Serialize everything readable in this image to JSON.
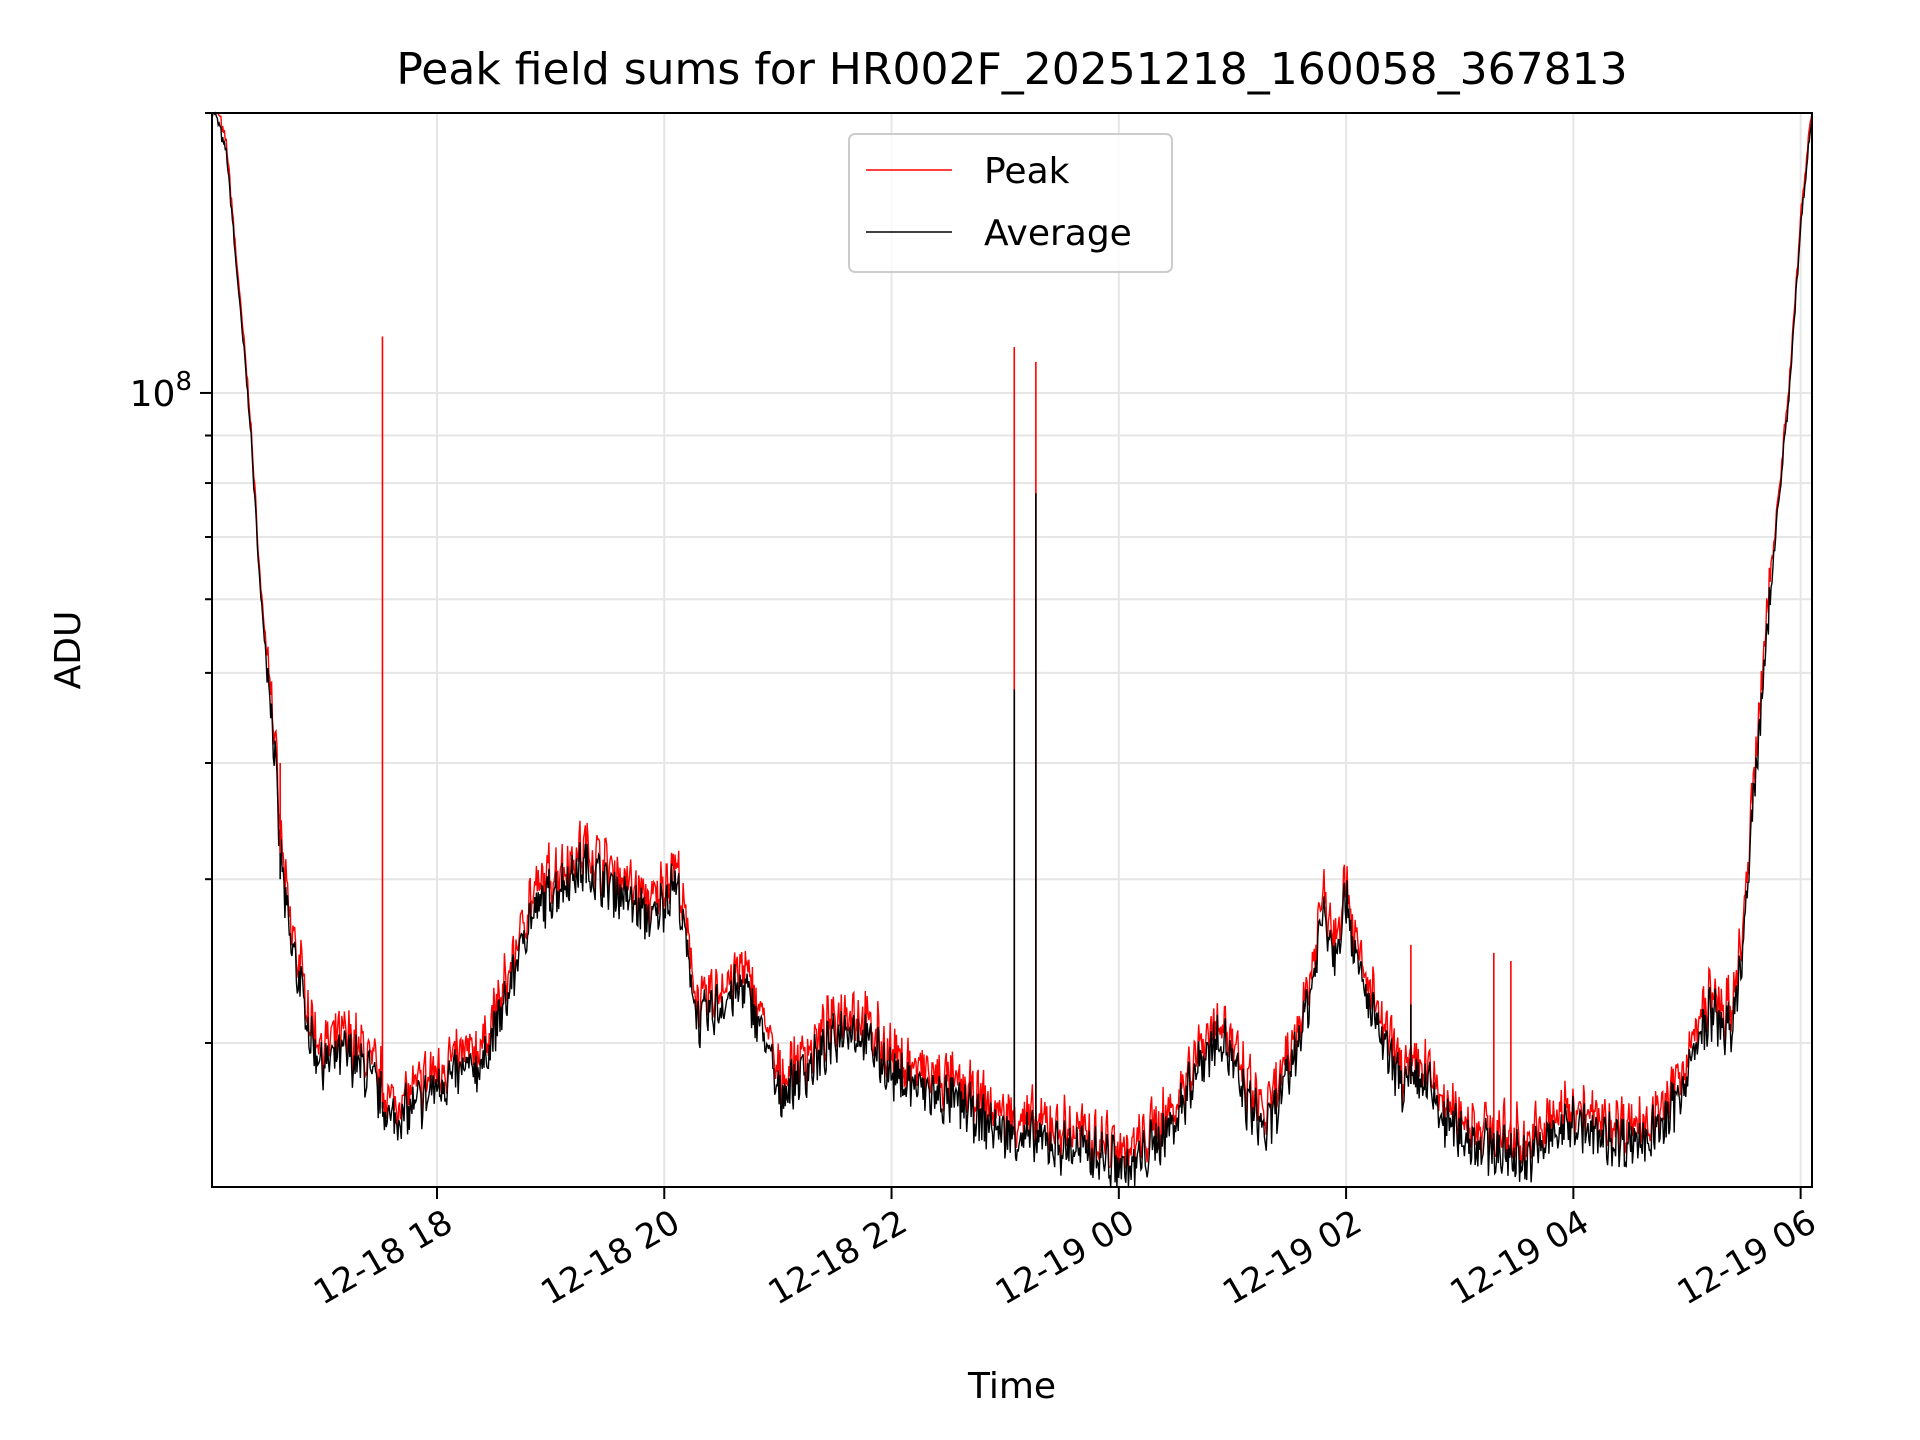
{
  "chart_data": {
    "type": "line",
    "title": "Peak field sums for HR002F_20251218_160058_367813",
    "xlabel": "Time",
    "ylabel": "ADU",
    "yscale": "log",
    "ylim": [
      14000000,
      200000000
    ],
    "y_major_tick": {
      "value": 100000000,
      "base": "10",
      "exponent": "8"
    },
    "y_minor_ticks": [
      20000000,
      30000000,
      40000000,
      50000000,
      60000000,
      70000000,
      80000000,
      90000000,
      200000000
    ],
    "x_range_hours": [
      16.02,
      30.1
    ],
    "x_ticks": [
      {
        "hour": 18,
        "label": "12-18 18"
      },
      {
        "hour": 20,
        "label": "12-18 20"
      },
      {
        "hour": 22,
        "label": "12-18 22"
      },
      {
        "hour": 24,
        "label": "12-19 00"
      },
      {
        "hour": 26,
        "label": "12-19 02"
      },
      {
        "hour": 28,
        "label": "12-19 04"
      },
      {
        "hour": 30,
        "label": "12-19 06"
      }
    ],
    "grid": true,
    "legend_position": "top-center",
    "series": [
      {
        "name": "Peak",
        "color": "#ff0000"
      },
      {
        "name": "Average",
        "color": "#000000"
      }
    ],
    "average_points": [
      [
        16.05,
        200000000
      ],
      [
        16.15,
        180000000
      ],
      [
        16.25,
        130000000
      ],
      [
        16.35,
        95000000
      ],
      [
        16.45,
        60000000
      ],
      [
        16.55,
        45000000
      ],
      [
        16.62,
        32000000
      ],
      [
        16.7,
        26000000
      ],
      [
        16.8,
        23000000
      ],
      [
        16.9,
        20000000
      ],
      [
        17.0,
        19000000
      ],
      [
        17.2,
        19500000
      ],
      [
        17.4,
        18500000
      ],
      [
        17.6,
        16500000
      ],
      [
        17.8,
        17000000
      ],
      [
        18.0,
        18000000
      ],
      [
        18.2,
        18500000
      ],
      [
        18.4,
        19000000
      ],
      [
        18.6,
        22000000
      ],
      [
        18.8,
        27000000
      ],
      [
        19.0,
        29000000
      ],
      [
        19.3,
        31000000
      ],
      [
        19.6,
        29000000
      ],
      [
        19.9,
        27000000
      ],
      [
        20.1,
        30000000
      ],
      [
        20.3,
        21000000
      ],
      [
        20.5,
        22000000
      ],
      [
        20.7,
        23000000
      ],
      [
        20.9,
        20000000
      ],
      [
        21.0,
        17500000
      ],
      [
        21.2,
        18500000
      ],
      [
        21.4,
        19500000
      ],
      [
        21.6,
        21000000
      ],
      [
        21.8,
        20000000
      ],
      [
        22.0,
        18500000
      ],
      [
        22.2,
        18000000
      ],
      [
        22.4,
        17500000
      ],
      [
        22.6,
        17200000
      ],
      [
        22.8,
        16500000
      ],
      [
        23.0,
        16000000
      ],
      [
        23.2,
        15800000
      ],
      [
        23.5,
        15500000
      ],
      [
        23.8,
        15200000
      ],
      [
        24.1,
        14600000
      ],
      [
        24.3,
        15500000
      ],
      [
        24.5,
        16500000
      ],
      [
        24.7,
        19000000
      ],
      [
        24.9,
        20500000
      ],
      [
        25.1,
        17500000
      ],
      [
        25.3,
        16000000
      ],
      [
        25.5,
        18500000
      ],
      [
        25.7,
        23000000
      ],
      [
        25.8,
        28000000
      ],
      [
        25.9,
        25000000
      ],
      [
        26.0,
        29000000
      ],
      [
        26.1,
        24000000
      ],
      [
        26.2,
        22000000
      ],
      [
        26.35,
        19500000
      ],
      [
        26.5,
        18000000
      ],
      [
        26.7,
        18200000
      ],
      [
        26.85,
        16500000
      ],
      [
        27.0,
        16000000
      ],
      [
        27.2,
        15500000
      ],
      [
        27.4,
        15200000
      ],
      [
        27.6,
        15000000
      ],
      [
        27.8,
        15800000
      ],
      [
        28.0,
        16500000
      ],
      [
        28.2,
        15800000
      ],
      [
        28.4,
        15700000
      ],
      [
        28.6,
        15800000
      ],
      [
        28.8,
        16200000
      ],
      [
        29.0,
        18500000
      ],
      [
        29.2,
        21500000
      ],
      [
        29.4,
        20500000
      ],
      [
        29.5,
        26000000
      ],
      [
        29.6,
        38000000
      ],
      [
        29.7,
        55000000
      ],
      [
        29.8,
        75000000
      ],
      [
        29.9,
        100000000
      ],
      [
        30.0,
        150000000
      ],
      [
        30.1,
        200000000
      ]
    ],
    "spikes": [
      {
        "hour": 16.62,
        "peak": 40000000,
        "average": 30000000
      },
      {
        "hour": 17.52,
        "peak": 115000000,
        "average": 17000000
      },
      {
        "hour": 23.08,
        "peak": 112000000,
        "average": 48000000
      },
      {
        "hour": 23.27,
        "peak": 108000000,
        "average": 78000000
      },
      {
        "hour": 26.57,
        "peak": 25500000,
        "average": 22000000
      },
      {
        "hour": 27.3,
        "peak": 25000000,
        "average": 16000000
      },
      {
        "hour": 27.45,
        "peak": 24500000,
        "average": 16000000
      }
    ]
  }
}
